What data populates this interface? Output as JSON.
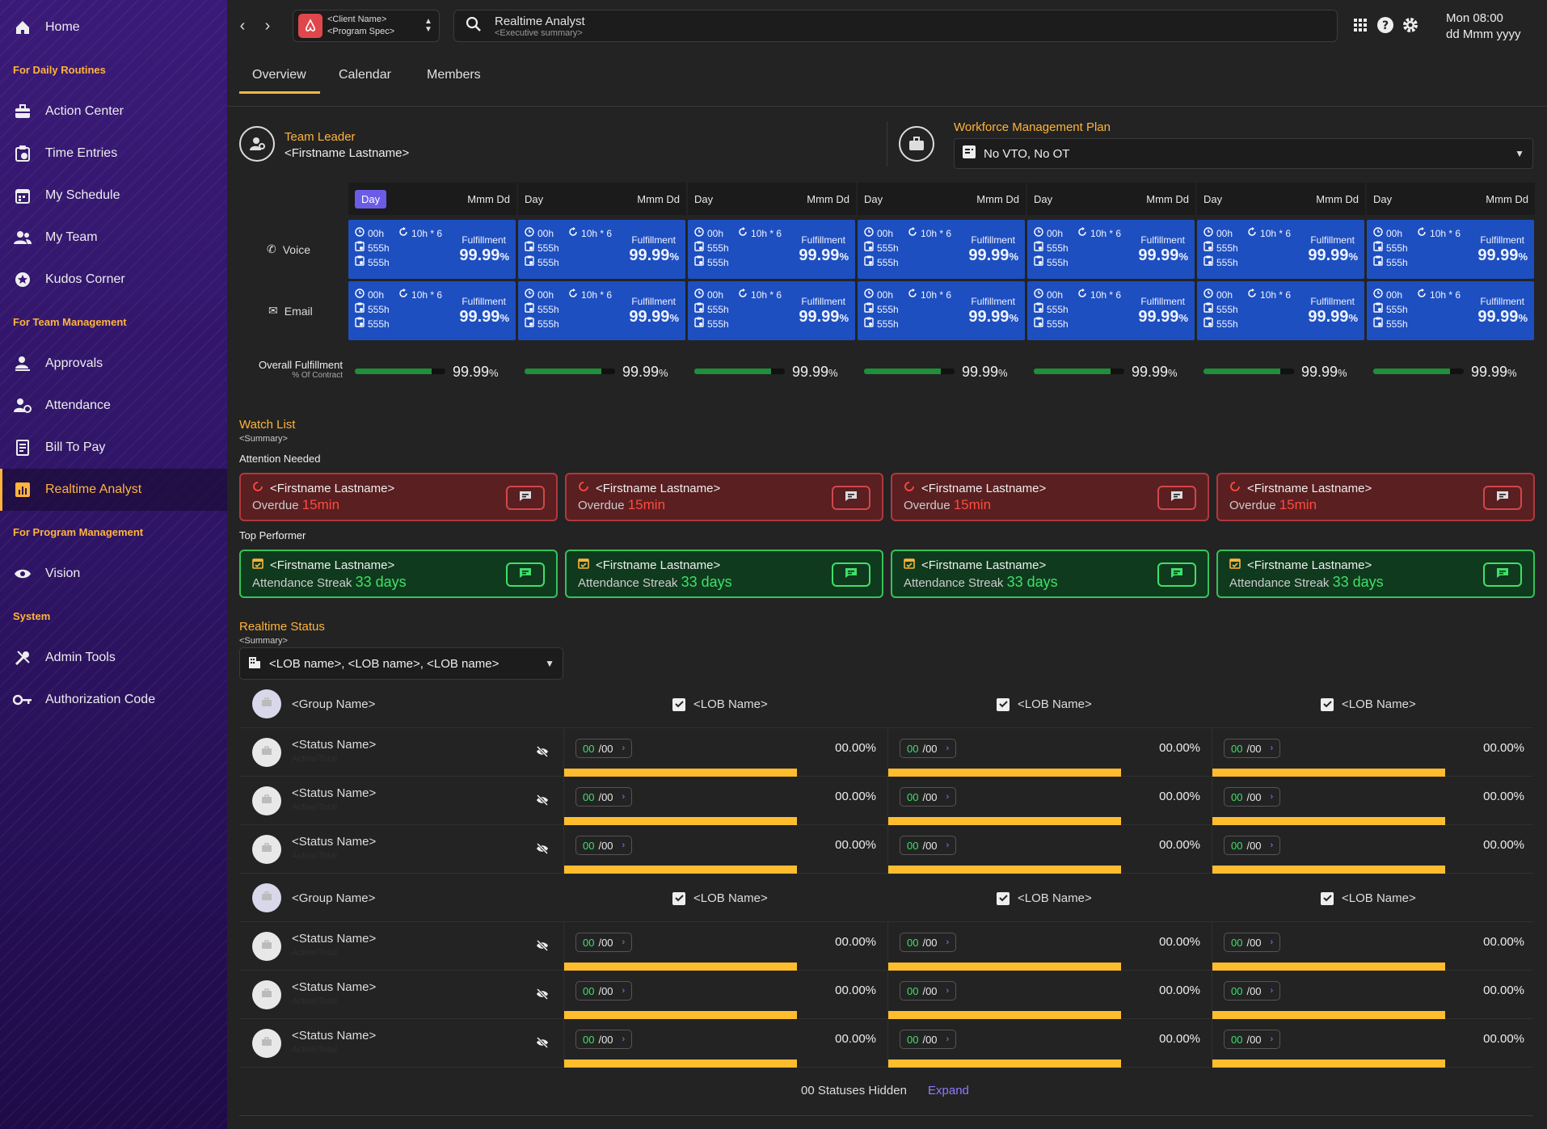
{
  "sidebar": {
    "items": [
      {
        "label": "Home",
        "icon": "home-icon"
      },
      {
        "label": "Action Center",
        "icon": "briefcase-icon"
      },
      {
        "label": "Time Entries",
        "icon": "clipboard-clock-icon"
      },
      {
        "label": "My Schedule",
        "icon": "calendar-icon"
      },
      {
        "label": "My Team",
        "icon": "team-icon"
      },
      {
        "label": "Kudos Corner",
        "icon": "star-badge-icon"
      },
      {
        "label": "Approvals",
        "icon": "user-check-icon"
      },
      {
        "label": "Attendance",
        "icon": "user-clock-icon"
      },
      {
        "label": "Bill To Pay",
        "icon": "receipt-icon"
      },
      {
        "label": "Realtime Analyst",
        "icon": "chart-icon"
      },
      {
        "label": "Vision",
        "icon": "eye-icon"
      },
      {
        "label": "Admin Tools",
        "icon": "tools-icon"
      },
      {
        "label": "Authorization Code",
        "icon": "key-icon"
      }
    ],
    "sections": [
      "For Daily Routines",
      "For Team Management",
      "For Program Management",
      "System"
    ]
  },
  "topbar": {
    "client_name": "<Client Name>",
    "program_spec": "<Program Spec>",
    "search_title": "Realtime Analyst",
    "search_subtitle": "<Executive summary>",
    "clock_time": "Mon 08:00",
    "clock_date": "dd Mmm yyyy"
  },
  "tabs": [
    "Overview",
    "Calendar",
    "Members"
  ],
  "leader": {
    "title": "Team Leader",
    "name": "<Firstname Lastname>"
  },
  "wfm": {
    "title": "Workforce Management Plan",
    "value": "No VTO, No OT"
  },
  "grid": {
    "days": [
      {
        "day": "Day",
        "date": "Mmm Dd",
        "active": true
      },
      {
        "day": "Day",
        "date": "Mmm Dd"
      },
      {
        "day": "Day",
        "date": "Mmm Dd"
      },
      {
        "day": "Day",
        "date": "Mmm Dd"
      },
      {
        "day": "Day",
        "date": "Mmm Dd"
      },
      {
        "day": "Day",
        "date": "Mmm Dd"
      },
      {
        "day": "Day",
        "date": "Mmm Dd"
      }
    ],
    "rows": [
      "Voice",
      "Email"
    ],
    "cell": {
      "h1": "00h",
      "h2": "10h * 6",
      "h3": "555h",
      "h4": "555h",
      "fulfillment_label": "Fulfillment",
      "value": "99.99",
      "unit": "%"
    },
    "overall_label": "Overall Fulfillment",
    "overall_sub": "% Of Contract",
    "overall_value": "99.99",
    "overall_unit": "%",
    "overall_fill": 0.85
  },
  "watchlist": {
    "title": "Watch List",
    "summary": "<Summary>",
    "attention_label": "Attention Needed",
    "attention": [
      {
        "name": "<Firstname Lastname>",
        "prefix": "Overdue",
        "value": "15min"
      },
      {
        "name": "<Firstname Lastname>",
        "prefix": "Overdue",
        "value": "15min"
      },
      {
        "name": "<Firstname Lastname>",
        "prefix": "Overdue",
        "value": "15min"
      },
      {
        "name": "<Firstname Lastname>",
        "prefix": "Overdue",
        "value": "15min"
      }
    ],
    "top_label": "Top Performer",
    "top": [
      {
        "name": "<Firstname Lastname>",
        "prefix": "Attendance Streak",
        "value": "33 days"
      },
      {
        "name": "<Firstname Lastname>",
        "prefix": "Attendance Streak",
        "value": "33 days"
      },
      {
        "name": "<Firstname Lastname>",
        "prefix": "Attendance Streak",
        "value": "33 days"
      },
      {
        "name": "<Firstname Lastname>",
        "prefix": "Attendance Streak",
        "value": "33 days"
      }
    ]
  },
  "realtime": {
    "title": "Realtime Status",
    "summary": "<Summary>",
    "lob_select": "<LOB name>, <LOB name>, <LOB name>",
    "group_name": "<Group Name>",
    "lob_name": "<LOB Name>",
    "status_name": "<Status Name>",
    "status_sub": "Active/Total",
    "count_a": "00",
    "count_b": "/00",
    "pct": "00.00%",
    "bar_fill": 0.72,
    "hidden_text": "00 Statuses Hidden",
    "expand": "Expand"
  },
  "colors": {
    "accent": "#ffb43a",
    "cell_blue": "#1e4fc0",
    "danger": "#ff4b3e",
    "success": "#3fe06a",
    "bar": "#ffbd2e"
  }
}
